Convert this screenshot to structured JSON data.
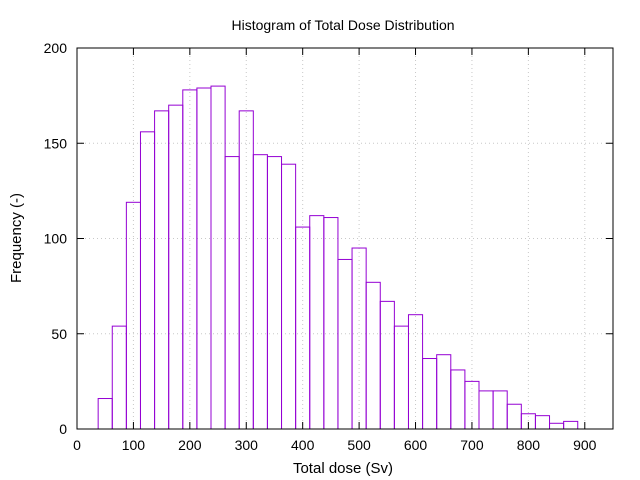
{
  "chart_data": {
    "type": "bar",
    "title": "Histogram of Total Dose Distribution",
    "xlabel": "Total dose (Sv)",
    "ylabel": "Frequency (-)",
    "xlim": [
      0,
      950
    ],
    "ylim": [
      0,
      200
    ],
    "xticks": [
      0,
      100,
      200,
      300,
      400,
      500,
      600,
      700,
      800,
      900
    ],
    "yticks": [
      0,
      50,
      100,
      150,
      200
    ],
    "grid": true,
    "bar_color": "#9400D3",
    "bin_width": 25,
    "series": [
      {
        "bin_centers": [
          50,
          75,
          100,
          125,
          150,
          175,
          200,
          225,
          250,
          275,
          300,
          325,
          350,
          375,
          400,
          425,
          450,
          475,
          500,
          525,
          550,
          575,
          600,
          625,
          650,
          675,
          700,
          725,
          750,
          775,
          800,
          825,
          850,
          875
        ],
        "values": [
          16,
          54,
          119,
          156,
          167,
          170,
          178,
          179,
          180,
          143,
          167,
          144,
          143,
          139,
          106,
          112,
          111,
          89,
          95,
          77,
          67,
          54,
          60,
          37,
          39,
          31,
          25,
          20,
          20,
          13,
          8,
          7,
          3,
          4
        ]
      }
    ]
  }
}
